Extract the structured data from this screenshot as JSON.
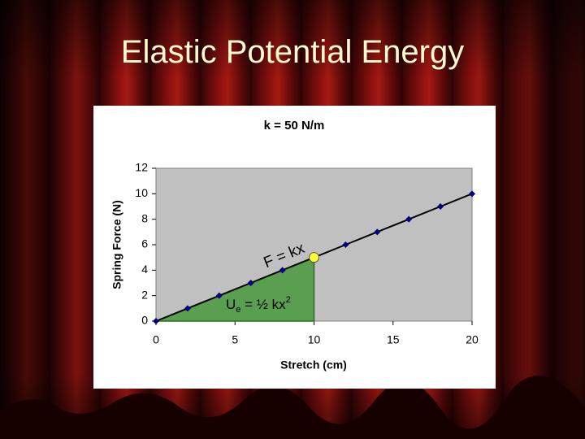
{
  "slide_title": "Elastic Potential Energy",
  "chart_data": {
    "type": "line",
    "title": "k = 50 N/m",
    "x_label": "Stretch (cm)",
    "y_label": "Spring Force (N)",
    "x": [
      0,
      2,
      4,
      6,
      8,
      10,
      12,
      14,
      16,
      18,
      20
    ],
    "series": [
      {
        "name": "F",
        "color": "#000080",
        "values": [
          0,
          1,
          2,
          3,
          4,
          5,
          6,
          7,
          8,
          9,
          10
        ]
      }
    ],
    "xlim": [
      0,
      20
    ],
    "xticks": [
      0,
      5,
      10,
      15,
      20
    ],
    "ylim": [
      0,
      12
    ],
    "yticks": [
      0,
      2,
      4,
      6,
      8,
      10,
      12
    ],
    "highlight": {
      "x": 10,
      "y": 5,
      "color": "#ffff33",
      "area_color": "#5a9e50"
    },
    "force_label": "F = kx",
    "energy_label": {
      "base": "U",
      "subscript": "e",
      "middle": " = ½ kx",
      "superscript": "2"
    }
  }
}
